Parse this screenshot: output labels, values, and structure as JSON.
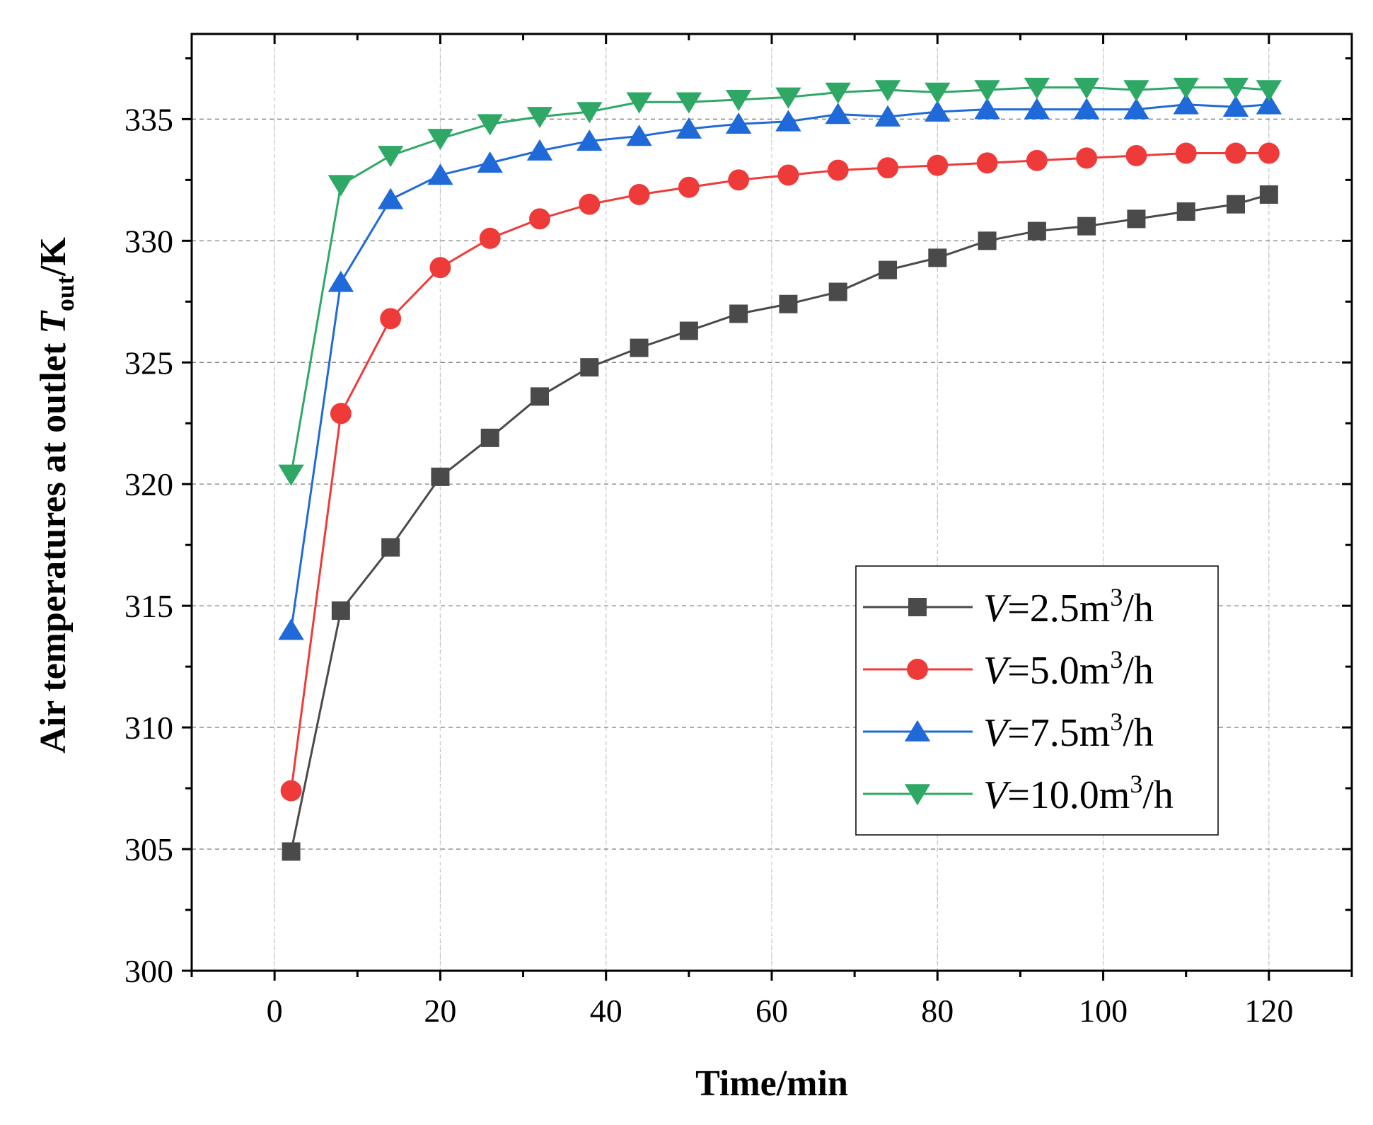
{
  "chart_data": {
    "type": "line",
    "title": "",
    "xlabel": "Time/min",
    "ylabel": {
      "prefix": "Air temperatures at outlet ",
      "symbol": "T",
      "subscript": "out",
      "suffix": "/K"
    },
    "xlim": [
      -10,
      130
    ],
    "ylim": [
      300,
      338.5
    ],
    "xticks": [
      0,
      20,
      40,
      60,
      80,
      100,
      120
    ],
    "yticks": [
      300,
      305,
      310,
      315,
      320,
      325,
      330,
      335
    ],
    "grid": true,
    "legend_position": "lower-right",
    "x": [
      2,
      8,
      14,
      20,
      26,
      32,
      38,
      44,
      50,
      56,
      62,
      68,
      74,
      80,
      86,
      92,
      98,
      104,
      110,
      116,
      120
    ],
    "series": [
      {
        "name": "V=2.5m3/h",
        "legend": {
          "var": "V",
          "eq": "=2.5m",
          "sup": "3",
          "unit": "/h"
        },
        "color": "#4a4a4a",
        "marker": "square",
        "values": [
          304.9,
          314.8,
          317.4,
          320.3,
          321.9,
          323.6,
          324.8,
          325.6,
          326.3,
          327.0,
          327.4,
          327.9,
          328.8,
          329.3,
          330.0,
          330.4,
          330.6,
          330.9,
          331.2,
          331.5,
          331.9
        ]
      },
      {
        "name": "V=5.0m3/h",
        "legend": {
          "var": "V",
          "eq": "=5.0m",
          "sup": "3",
          "unit": "/h"
        },
        "color": "#ef3a3a",
        "marker": "circle",
        "values": [
          307.4,
          322.9,
          326.8,
          328.9,
          330.1,
          330.9,
          331.5,
          331.9,
          332.2,
          332.5,
          332.7,
          332.9,
          333.0,
          333.1,
          333.2,
          333.3,
          333.4,
          333.5,
          333.6,
          333.6,
          333.6
        ]
      },
      {
        "name": "V=7.5m3/h",
        "legend": {
          "var": "V",
          "eq": "=7.5m",
          "sup": "3",
          "unit": "/h"
        },
        "color": "#1f6ad8",
        "marker": "triangle-up",
        "values": [
          314.0,
          328.3,
          331.7,
          332.7,
          333.2,
          333.7,
          334.1,
          334.3,
          334.6,
          334.8,
          334.9,
          335.2,
          335.1,
          335.3,
          335.4,
          335.4,
          335.4,
          335.4,
          335.6,
          335.5,
          335.6
        ]
      },
      {
        "name": "V=10.0m3/h",
        "legend": {
          "var": "V",
          "eq": "=10.0m",
          "sup": "3",
          "unit": "/h"
        },
        "color": "#2fa866",
        "marker": "triangle-down",
        "values": [
          320.4,
          332.3,
          333.5,
          334.2,
          334.8,
          335.1,
          335.3,
          335.7,
          335.7,
          335.8,
          335.9,
          336.1,
          336.2,
          336.1,
          336.2,
          336.3,
          336.3,
          336.2,
          336.3,
          336.3,
          336.2
        ]
      }
    ]
  }
}
